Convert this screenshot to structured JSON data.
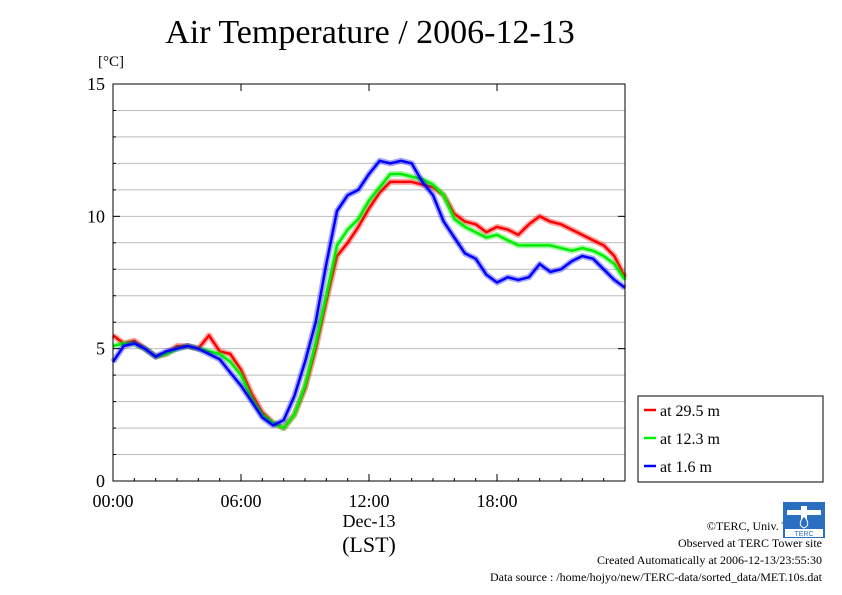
{
  "page": {
    "title": "Air Temperature / 2006-12-13",
    "unit": "[°C]",
    "credits": [
      "©TERC, Univ. Tsukuba",
      "Observed at TERC Tower site",
      "Created Automatically at 2006-12-13/23:55:30",
      "Data source : /home/hojyo/new/TERC-data/sorted_data/MET.10s.dat"
    ],
    "logo_text": "TERC"
  },
  "colors": {
    "red": "#ff0000",
    "green": "#00ee00",
    "blue": "#0000ff"
  },
  "chart_data": {
    "type": "line",
    "title": "Air Temperature / 2006-12-13",
    "ylabel": "[°C]",
    "xlabel": "Dec-13",
    "xlabel2": "(LST)",
    "xlim": [
      0,
      24
    ],
    "ylim": [
      0,
      15
    ],
    "x_ticks": [
      0,
      6,
      12,
      18
    ],
    "x_tick_labels": [
      "00:00",
      "06:00",
      "12:00",
      "18:00"
    ],
    "y_ticks": [
      0,
      5,
      10,
      15
    ],
    "y_tick_labels": [
      "0",
      "5",
      "10",
      "15"
    ],
    "grid": true,
    "legend_placement": "right-lower",
    "series": [
      {
        "name": "at 29.5 m",
        "color": "#ff0000",
        "x": [
          0,
          0.5,
          1,
          1.5,
          2,
          2.5,
          3,
          3.5,
          4,
          4.5,
          5,
          5.5,
          6,
          6.5,
          7,
          7.5,
          8,
          8.5,
          9,
          9.5,
          10,
          10.5,
          11,
          11.5,
          12,
          12.5,
          13,
          13.5,
          14,
          14.5,
          15,
          15.5,
          16,
          16.5,
          17,
          17.5,
          18,
          18.5,
          19,
          19.5,
          20,
          20.5,
          21,
          21.5,
          22,
          22.5,
          23,
          23.5,
          24
        ],
        "values": [
          5.5,
          5.2,
          5.3,
          5.0,
          4.7,
          4.8,
          5.1,
          5.1,
          5.0,
          5.5,
          4.9,
          4.8,
          4.2,
          3.3,
          2.6,
          2.2,
          2.0,
          2.5,
          3.5,
          5.0,
          6.8,
          8.5,
          9.0,
          9.6,
          10.3,
          10.9,
          11.3,
          11.3,
          11.3,
          11.2,
          11.1,
          10.8,
          10.1,
          9.8,
          9.7,
          9.4,
          9.6,
          9.5,
          9.3,
          9.7,
          10.0,
          9.8,
          9.7,
          9.5,
          9.3,
          9.1,
          8.9,
          8.5,
          7.7
        ]
      },
      {
        "name": "at 12.3 m",
        "color": "#00ee00",
        "x": [
          0,
          0.5,
          1,
          1.5,
          2,
          2.5,
          3,
          3.5,
          4,
          4.5,
          5,
          5.5,
          6,
          6.5,
          7,
          7.5,
          8,
          8.5,
          9,
          9.5,
          10,
          10.5,
          11,
          11.5,
          12,
          12.5,
          13,
          13.5,
          14,
          14.5,
          15,
          15.5,
          16,
          16.5,
          17,
          17.5,
          18,
          18.5,
          19,
          19.5,
          20,
          20.5,
          21,
          21.5,
          22,
          22.5,
          23,
          23.5,
          24
        ],
        "values": [
          5.1,
          5.2,
          5.2,
          5.0,
          4.7,
          4.8,
          5.0,
          5.1,
          5.0,
          4.9,
          4.8,
          4.5,
          4.0,
          3.1,
          2.5,
          2.2,
          2.0,
          2.5,
          3.6,
          5.2,
          7.0,
          8.9,
          9.5,
          9.9,
          10.6,
          11.1,
          11.6,
          11.6,
          11.5,
          11.4,
          11.2,
          10.8,
          9.9,
          9.6,
          9.4,
          9.2,
          9.3,
          9.1,
          8.9,
          8.9,
          8.9,
          8.9,
          8.8,
          8.7,
          8.8,
          8.7,
          8.5,
          8.2,
          7.6
        ]
      },
      {
        "name": "at 1.6 m",
        "color": "#0000ff",
        "x": [
          0,
          0.5,
          1,
          1.5,
          2,
          2.5,
          3,
          3.5,
          4,
          4.5,
          5,
          5.5,
          6,
          6.5,
          7,
          7.5,
          8,
          8.5,
          9,
          9.5,
          10,
          10.5,
          11,
          11.5,
          12,
          12.5,
          13,
          13.5,
          14,
          14.5,
          15,
          15.5,
          16,
          16.5,
          17,
          17.5,
          18,
          18.5,
          19,
          19.5,
          20,
          20.5,
          21,
          21.5,
          22,
          22.5,
          23,
          23.5,
          24
        ],
        "values": [
          4.5,
          5.1,
          5.2,
          5.0,
          4.7,
          4.9,
          5.0,
          5.1,
          5.0,
          4.8,
          4.6,
          4.1,
          3.6,
          3.0,
          2.4,
          2.1,
          2.3,
          3.2,
          4.5,
          6.0,
          8.2,
          10.2,
          10.8,
          11.0,
          11.6,
          12.1,
          12.0,
          12.1,
          12.0,
          11.3,
          10.8,
          9.8,
          9.2,
          8.6,
          8.4,
          7.8,
          7.5,
          7.7,
          7.6,
          7.7,
          8.2,
          7.9,
          8.0,
          8.3,
          8.5,
          8.4,
          8.0,
          7.6,
          7.3
        ]
      }
    ]
  }
}
